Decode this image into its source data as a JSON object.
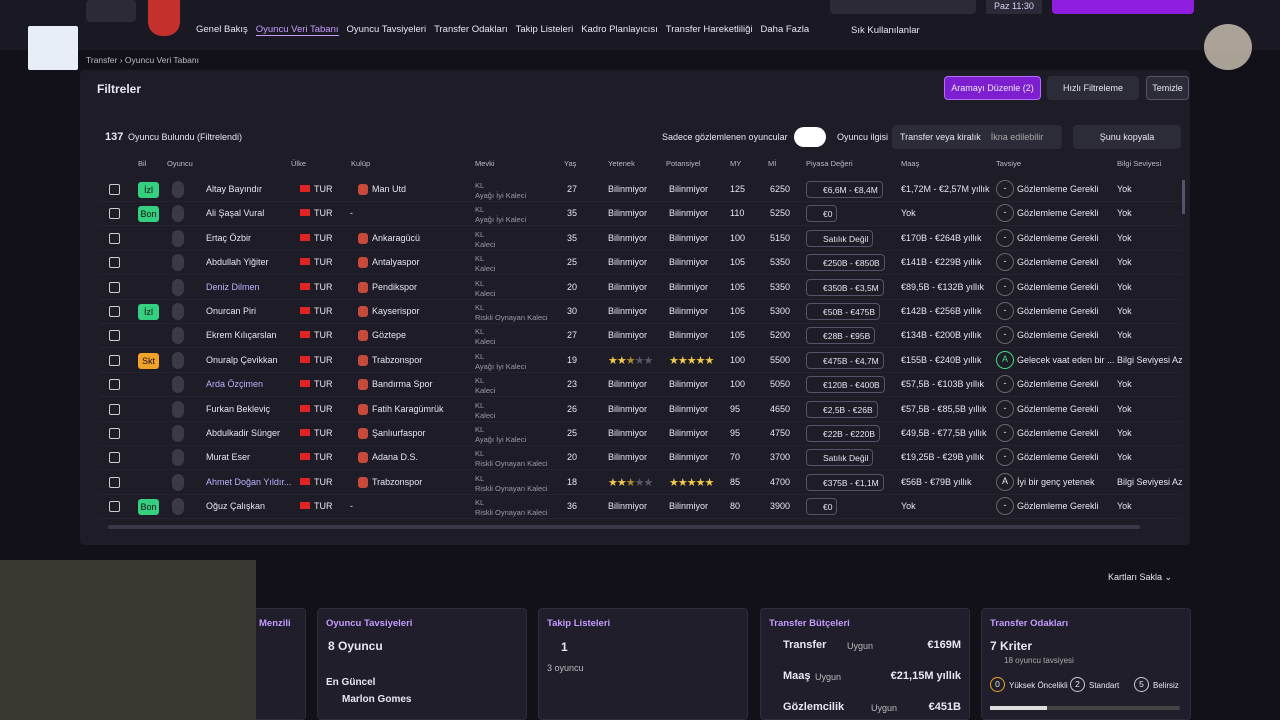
{
  "topbar": {
    "time": "Paz 11:30",
    "favorites": "Sık Kullanılanlar"
  },
  "tabs": [
    "Genel Bakış",
    "Oyuncu Veri Tabanı",
    "Oyuncu Tavsiyeleri",
    "Transfer Odakları",
    "Takip Listeleri",
    "Kadro Planlayıcısı",
    "Transfer Hareketliliği",
    "Daha Fazla"
  ],
  "breadcrumb": [
    "Transfer",
    "Oyuncu Veri Tabanı"
  ],
  "filters": {
    "title": "Filtreler",
    "buttons": [
      "Aramayı Düzenle (2)",
      "Hızlı Filtreleme",
      "Temizle"
    ]
  },
  "results": {
    "count": "137",
    "count_text": "Oyuncu Bulundu (Filtrelendi)",
    "watched_only": "Sadece gözlemlenen oyuncular",
    "interest_label": "Oyuncu ilgisi",
    "interest_value": "Transfer veya kiralık",
    "persuadable": "İkna edilebilir",
    "copy": "Şunu kopyala"
  },
  "table": {
    "columns": [
      "Bil",
      "Oyuncu",
      "Ülke",
      "Kulüp",
      "Mevki",
      "Yaş",
      "Yetenek",
      "Potansiyel",
      "MY",
      "Mİ",
      "Piyasa Değeri",
      "Maaş",
      "Tavsiye",
      "Bilgi Seviyesi"
    ],
    "rows": [
      {
        "tag": {
          "label": "İzl",
          "color": "#35d07f"
        },
        "name": "Altay Bayındır",
        "nation": "TUR",
        "club": "Man Utd",
        "pos": "KL",
        "role": "Ayağı İyi Kaleci",
        "age": "27",
        "ability": "Bilinmiyor",
        "potential": "Bilinmiyor",
        "my": "125",
        "mi": "6250",
        "value": "€6,6M - €8,4M",
        "wage": "€1,72M - €2,57M yıllık",
        "grade": "-",
        "rec": "Gözlemleme Gerekli",
        "info": "Yok"
      },
      {
        "tag": {
          "label": "Bon",
          "color": "#35d07f"
        },
        "name": "Ali Şaşal Vural",
        "nation": "TUR",
        "club": "-",
        "pos": "KL",
        "role": "Ayağı İyi Kaleci",
        "age": "35",
        "ability": "Bilinmiyor",
        "potential": "Bilinmiyor",
        "my": "110",
        "mi": "5250",
        "value": "€0",
        "wage": "Yok",
        "grade": "-",
        "rec": "Gözlemleme Gerekli",
        "info": "Yok"
      },
      {
        "tag": null,
        "name": "Ertaç Özbir",
        "nation": "TUR",
        "club": "Ankaragücü",
        "pos": "KL",
        "role": "Kaleci",
        "age": "35",
        "ability": "Bilinmiyor",
        "potential": "Bilinmiyor",
        "my": "100",
        "mi": "5150",
        "value": "Satılık Değil",
        "wage": "€170B - €264B yıllık",
        "grade": "-",
        "rec": "Gözlemleme Gerekli",
        "info": "Yok"
      },
      {
        "tag": null,
        "name": "Abdullah Yiğiter",
        "nation": "TUR",
        "club": "Antalyaspor",
        "pos": "KL",
        "role": "Kaleci",
        "age": "25",
        "ability": "Bilinmiyor",
        "potential": "Bilinmiyor",
        "my": "105",
        "mi": "5350",
        "value": "€250B - €850B",
        "wage": "€141B - €229B yıllık",
        "grade": "-",
        "rec": "Gözlemleme Gerekli",
        "info": "Yok"
      },
      {
        "tag": null,
        "name": "Deniz Dilmen",
        "nation": "TUR",
        "club": "Pendikspor",
        "pos": "KL",
        "role": "Kaleci",
        "age": "20",
        "ability": "Bilinmiyor",
        "potential": "Bilinmiyor",
        "my": "105",
        "mi": "5350",
        "value": "€350B - €3,5M",
        "wage": "€89,5B - €132B yıllık",
        "grade": "-",
        "rec": "Gözlemleme Gerekli",
        "info": "Yok"
      },
      {
        "tag": {
          "label": "İzl",
          "color": "#35d07f"
        },
        "name": "Onurcan Piri",
        "nation": "TUR",
        "club": "Kayserispor",
        "pos": "KL",
        "role": "Riskli Oynayan Kaleci",
        "age": "30",
        "ability": "Bilinmiyor",
        "potential": "Bilinmiyor",
        "my": "105",
        "mi": "5300",
        "value": "€50B - €475B",
        "wage": "€142B - €256B yıllık",
        "grade": "-",
        "rec": "Gözlemleme Gerekli",
        "info": "Yok"
      },
      {
        "tag": null,
        "name": "Ekrem Kılıçarslan",
        "nation": "TUR",
        "club": "Göztepe",
        "pos": "KL",
        "role": "Kaleci",
        "age": "27",
        "ability": "Bilinmiyor",
        "potential": "Bilinmiyor",
        "my": "105",
        "mi": "5200",
        "value": "€28B - €95B",
        "wage": "€134B - €200B yıllık",
        "grade": "-",
        "rec": "Gözlemleme Gerekli",
        "info": "Yok"
      },
      {
        "tag": {
          "label": "Skt",
          "color": "#f0a22a"
        },
        "name": "Onuralp Çevikkan",
        "nation": "TUR",
        "club": "Trabzonspor",
        "pos": "KL",
        "role": "Ayağı İyi Kaleci",
        "age": "19",
        "ability_stars": 2.5,
        "potential_stars": 5,
        "my": "100",
        "mi": "5500",
        "value": "€475B - €4,7M",
        "wage": "€155B - €240B yıllık",
        "grade": "A",
        "rec": "Gelecek vaat eden bir ...",
        "info": "Bilgi Seviyesi Az"
      },
      {
        "tag": null,
        "name": "Arda Özçimen",
        "nation": "TUR",
        "club": "Bandırma Spor",
        "pos": "KL",
        "role": "Kaleci",
        "age": "23",
        "ability": "Bilinmiyor",
        "potential": "Bilinmiyor",
        "my": "100",
        "mi": "5050",
        "value": "€120B - €400B",
        "wage": "€57,5B - €103B yıllık",
        "grade": "-",
        "rec": "Gözlemleme Gerekli",
        "info": "Yok"
      },
      {
        "tag": null,
        "name": "Furkan Bekleviç",
        "nation": "TUR",
        "club": "Fatih Karagümrük",
        "pos": "KL",
        "role": "Kaleci",
        "age": "26",
        "ability": "Bilinmiyor",
        "potential": "Bilinmiyor",
        "my": "95",
        "mi": "4650",
        "value": "€2,5B - €26B",
        "wage": "€57,5B - €85,5B yıllık",
        "grade": "-",
        "rec": "Gözlemleme Gerekli",
        "info": "Yok"
      },
      {
        "tag": null,
        "name": "Abdulkadir Sünger",
        "nation": "TUR",
        "club": "Şanlıurfaspor",
        "pos": "KL",
        "role": "Ayağı İyi Kaleci",
        "age": "25",
        "ability": "Bilinmiyor",
        "potential": "Bilinmiyor",
        "my": "95",
        "mi": "4750",
        "value": "€22B - €220B",
        "wage": "€49,5B - €77,5B yıllık",
        "grade": "-",
        "rec": "Gözlemleme Gerekli",
        "info": "Yok"
      },
      {
        "tag": null,
        "name": "Murat Eser",
        "nation": "TUR",
        "club": "Adana D.S.",
        "pos": "KL",
        "role": "Riskli Oynayan Kaleci",
        "age": "20",
        "ability": "Bilinmiyor",
        "potential": "Bilinmiyor",
        "my": "70",
        "mi": "3700",
        "value": "Satılık Değil",
        "wage": "€19,25B - €29B yıllık",
        "grade": "-",
        "rec": "Gözlemleme Gerekli",
        "info": "Yok"
      },
      {
        "tag": null,
        "name": "Ahmet Doğan Yıldır...",
        "nation": "TUR",
        "club": "Trabzonspor",
        "pos": "KL",
        "role": "Riskli Oynayan Kaleci",
        "age": "18",
        "ability_stars": 2.5,
        "potential_stars": 5,
        "my": "85",
        "mi": "4700",
        "value": "€375B - €1,1M",
        "wage": "€56B - €79B yıllık",
        "grade": "A",
        "rec": "İyi bir genç yetenek",
        "info": "Bilgi Seviyesi Az"
      },
      {
        "tag": {
          "label": "Bon",
          "color": "#35d07f"
        },
        "name": "Oğuz Çalışkan",
        "nation": "TUR",
        "club": "-",
        "pos": "KL",
        "role": "Riskli Oynayan Kaleci",
        "age": "36",
        "ability": "Bilinmiyor",
        "potential": "Bilinmiyor",
        "my": "80",
        "mi": "3900",
        "value": "€0",
        "wage": "Yok",
        "grade": "-",
        "rec": "Gözlemleme Gerekli",
        "info": "Yok"
      }
    ]
  },
  "hide_cards": "Kartları Sakla",
  "cards": {
    "partial": {
      "title": "Menzili"
    },
    "recommendations": {
      "title": "Oyuncu Tavsiyeleri",
      "count": "8 Oyuncu",
      "latest_label": "En Güncel",
      "latest": "Marlon Gomes"
    },
    "watchlists": {
      "title": "Takip Listeleri",
      "count": "1",
      "sub": "3 oyuncu"
    },
    "budgets": {
      "title": "Transfer Bütçeleri",
      "items": [
        {
          "label": "Transfer",
          "status": "Uygun",
          "value": "€169M"
        },
        {
          "label": "Maaş",
          "status": "Uygun",
          "value": "€21,15M yıllık"
        },
        {
          "label": "Gözlemcilik",
          "status": "Uygun",
          "value": "€451B"
        }
      ]
    },
    "focus": {
      "title": "Transfer Odakları",
      "count": "7 Kriter",
      "sub": "18 oyuncu tavsiyesi",
      "levels": [
        {
          "n": "0",
          "label": "Yüksek Öncelikli"
        },
        {
          "n": "2",
          "label": "Standart"
        },
        {
          "n": "5",
          "label": "Belirsiz"
        }
      ]
    }
  }
}
